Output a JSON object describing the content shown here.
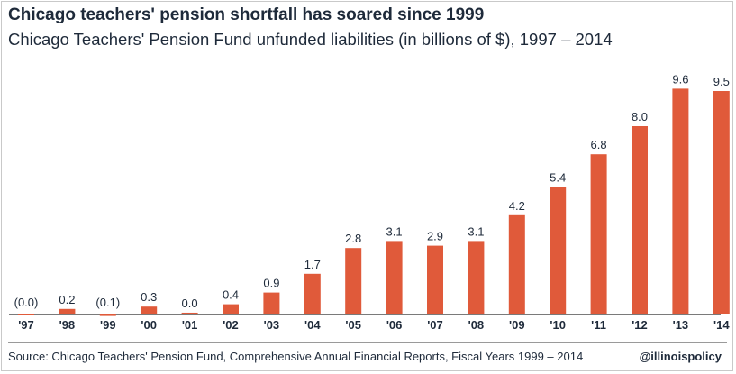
{
  "header": {
    "title": "Chicago teachers' pension shortfall has soared since 1999",
    "subtitle": "Chicago Teachers' Pension Fund unfunded liabilities (in billions of $), 1997 – 2014"
  },
  "footer": {
    "source": "Source: Chicago Teachers' Pension Fund, Comprehensive Annual Financial Reports, Fiscal Years 1999 – 2014",
    "brand": "@illinoispolicy"
  },
  "colors": {
    "bar": "#e05a3a",
    "text": "#1e2a3a",
    "axis": "#7a7a7a"
  },
  "chart_data": {
    "type": "bar",
    "title": "Chicago teachers' pension shortfall has soared since 1999",
    "subtitle": "Chicago Teachers' Pension Fund unfunded liabilities (in billions of $), 1997 – 2014",
    "xlabel": "",
    "ylabel": "",
    "categories": [
      "'97",
      "'98",
      "'99",
      "'00",
      "'01",
      "'02",
      "'03",
      "'04",
      "'05",
      "'06",
      "'07",
      "'08",
      "'09",
      "'10",
      "'11",
      "'12",
      "'13",
      "'14"
    ],
    "values": [
      -0.05,
      0.2,
      -0.1,
      0.3,
      0.04,
      0.4,
      0.9,
      1.7,
      2.8,
      3.1,
      2.9,
      3.1,
      4.2,
      5.4,
      6.8,
      8.0,
      9.6,
      9.5
    ],
    "data_labels": [
      "(0.0)",
      "0.2",
      "(0.1)",
      "0.3",
      "0.0",
      "0.4",
      "0.9",
      "1.7",
      "2.8",
      "3.1",
      "2.9",
      "3.1",
      "4.2",
      "5.4",
      "6.8",
      "8.0",
      "9.6",
      "9.5"
    ],
    "ylim": [
      0,
      10
    ],
    "grid": false,
    "legend": "none"
  }
}
